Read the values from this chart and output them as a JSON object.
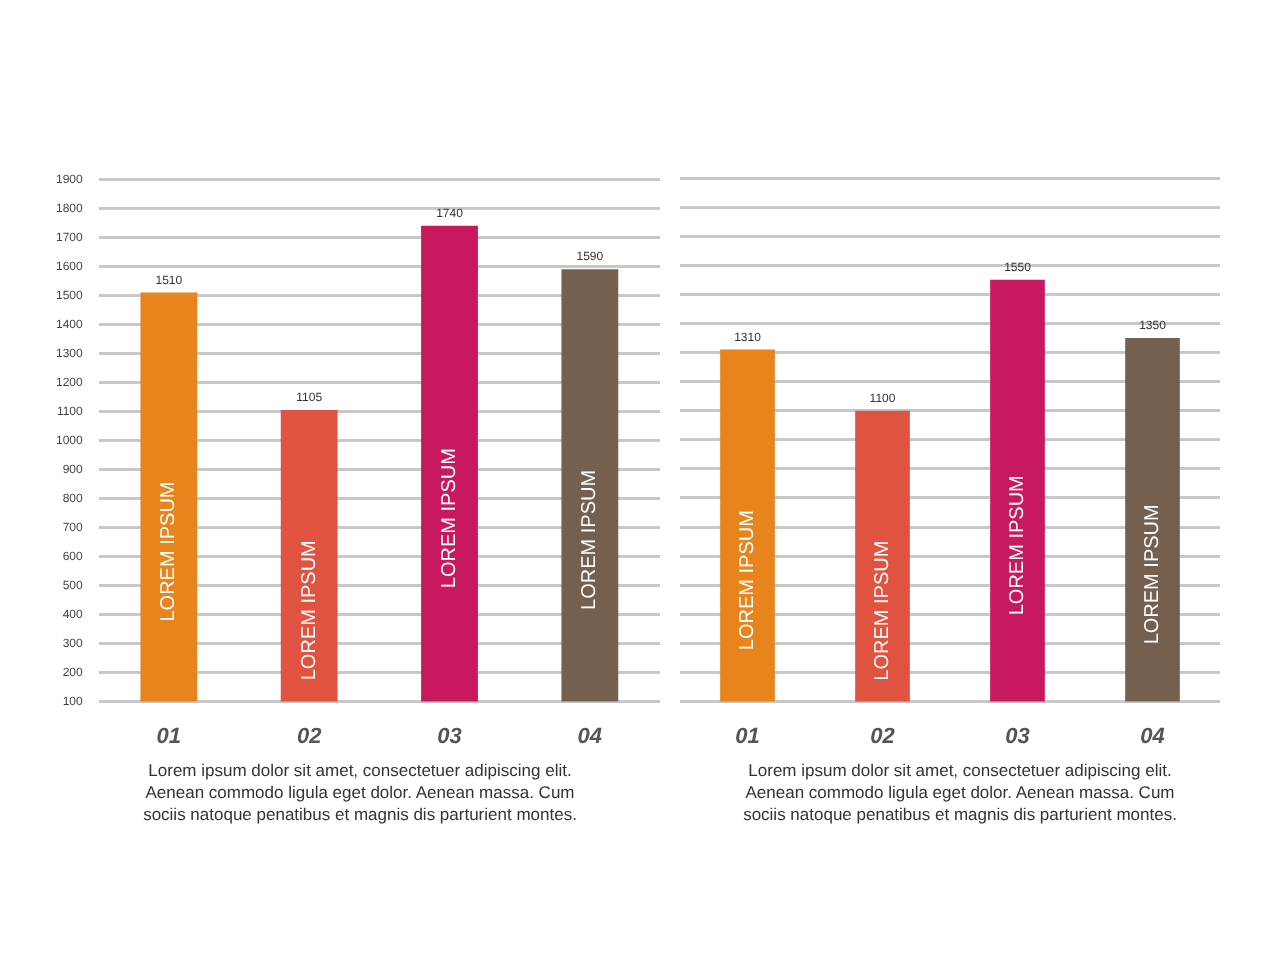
{
  "chart_data": [
    {
      "type": "bar",
      "categories": [
        "01",
        "02",
        "03",
        "04"
      ],
      "values": [
        1510,
        1105,
        1740,
        1590
      ],
      "colors": [
        "#e8841c",
        "#e05340",
        "#c8195e",
        "#75604f"
      ],
      "ylim": [
        100,
        1900
      ],
      "yticks": [
        100,
        200,
        300,
        400,
        500,
        600,
        700,
        800,
        900,
        1000,
        1100,
        1200,
        1300,
        1400,
        1500,
        1600,
        1700,
        1800,
        1900
      ],
      "grid": "y",
      "data_labels": true,
      "annotations": [
        "LOREM IPSUM",
        "LOREM IPSUM",
        "LOREM IPSUM",
        "LOREM IPSUM",
        "Lorem ipsum dolor sit amet, consectetuer adipiscing elit. Aenean commodo ligula eget dolor. Aenean massa. Cum sociis natoque penatibus et magnis dis parturient montes."
      ]
    },
    {
      "type": "bar",
      "categories": [
        "01",
        "02",
        "03",
        "04"
      ],
      "values": [
        1310,
        1100,
        1550,
        1350
      ],
      "colors": [
        "#e8841c",
        "#e05340",
        "#c8195e",
        "#75604f"
      ],
      "ylim": [
        100,
        1900
      ],
      "yticks": [
        100,
        200,
        300,
        400,
        500,
        600,
        700,
        800,
        900,
        1000,
        1100,
        1200,
        1300,
        1400,
        1500,
        1600,
        1700,
        1800,
        1900
      ],
      "grid": "y",
      "data_labels": true,
      "tick_labels": "x",
      "annotations": [
        "LOREM IPSUM",
        "LOREM IPSUM",
        "LOREM IPSUM",
        "LOREM IPSUM",
        "Lorem ipsum dolor sit amet, consectetuer adipiscing elit. Aenean commodo ligula eget dolor. Aenean massa. Cum sociis natoque penatibus et magnis dis parturient montes."
      ]
    }
  ]
}
